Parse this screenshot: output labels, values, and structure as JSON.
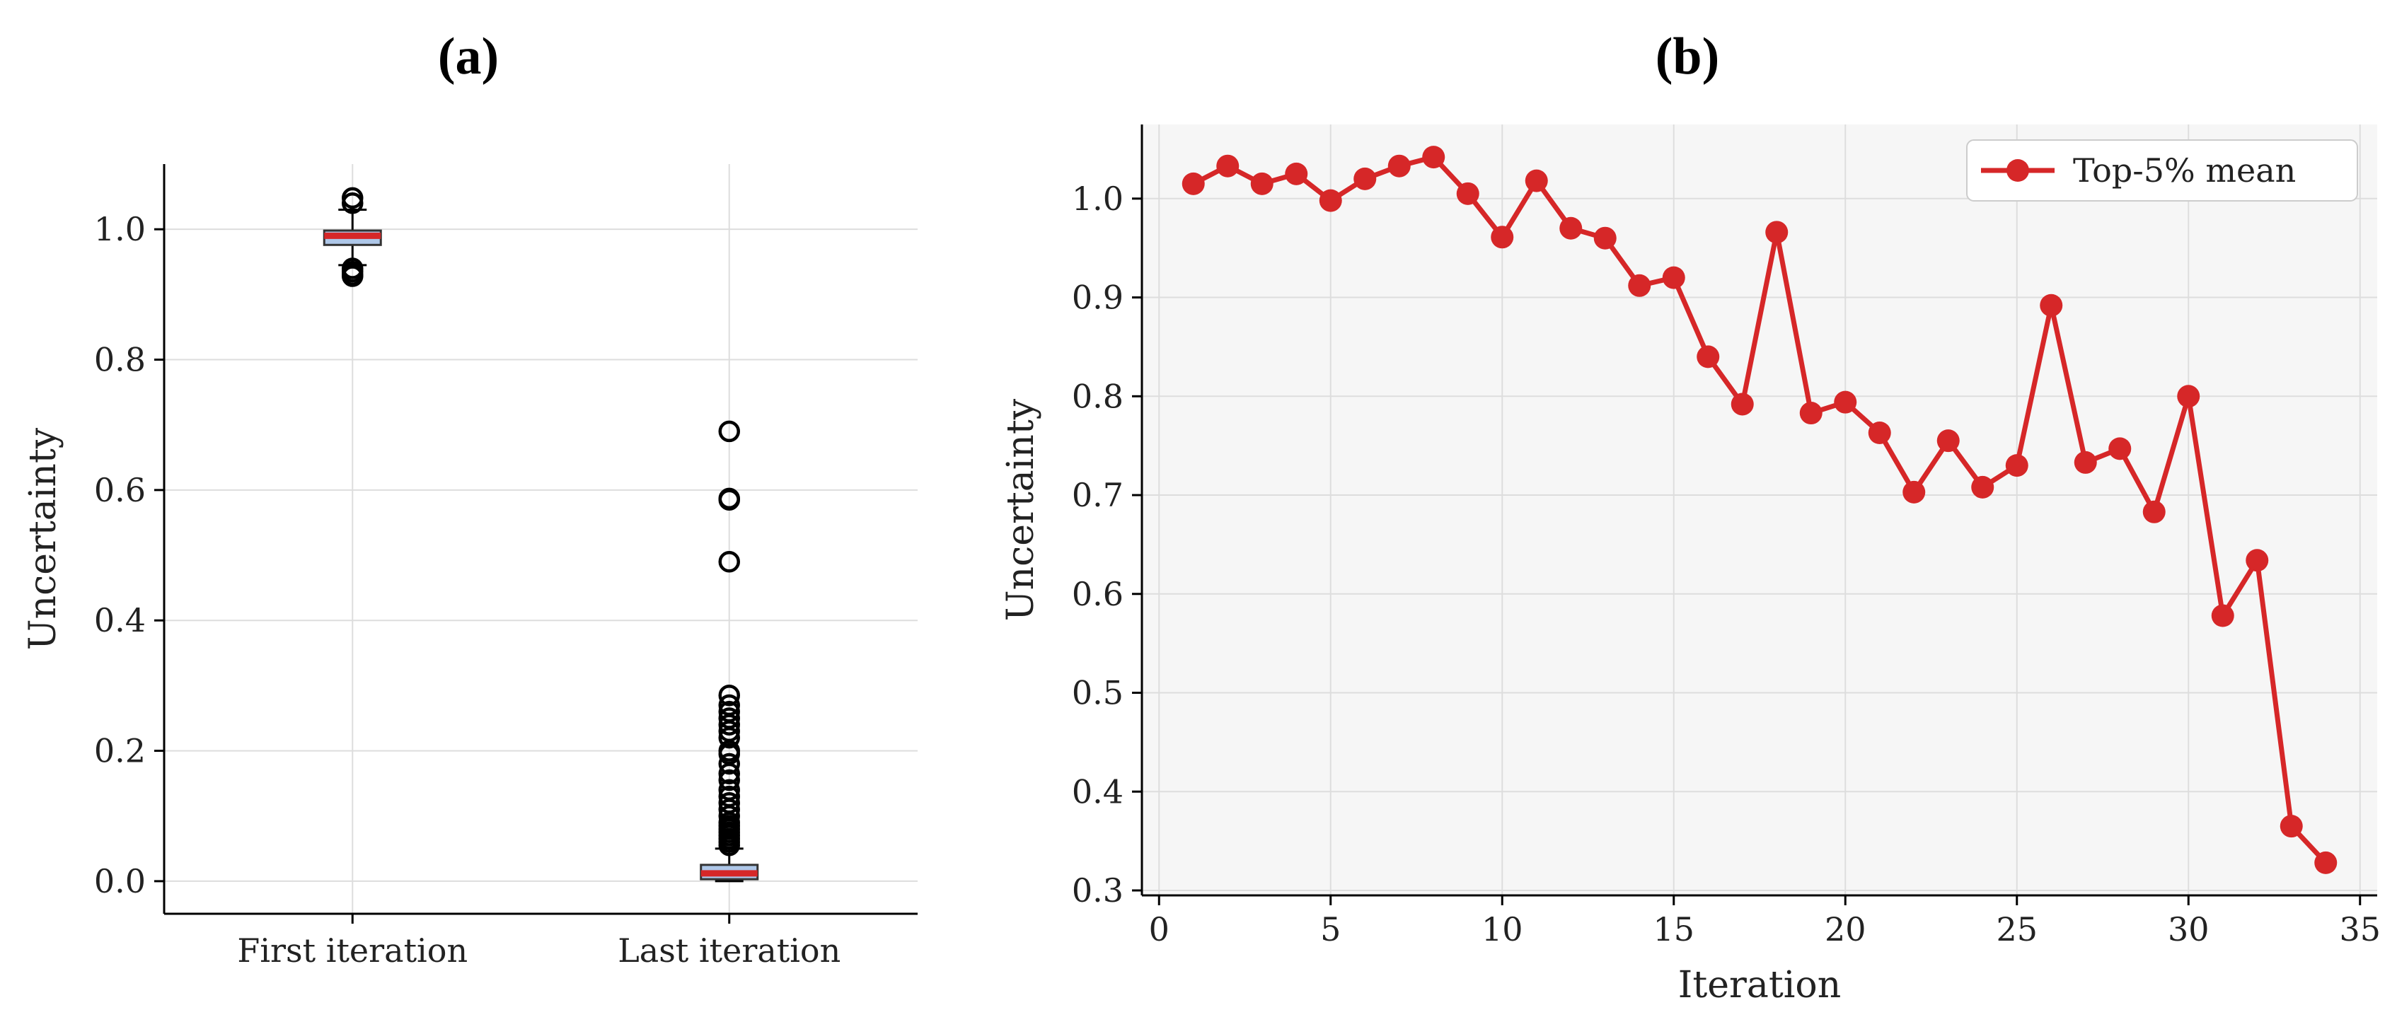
{
  "figure": {
    "panel_a_label": "(a)",
    "panel_b_label": "(b)"
  },
  "colors": {
    "accent_red": "#d62728",
    "box_fill": "#aec7e8",
    "grid": "#dddddd",
    "panel_b_bg": "#f6f6f6"
  },
  "chart_data": [
    {
      "type": "box",
      "title": "",
      "xlabel": "",
      "ylabel": "Uncertainty",
      "categories": [
        "First iteration",
        "Last iteration"
      ],
      "ylim": [
        -0.05,
        1.1
      ],
      "yticks": [
        0.0,
        0.2,
        0.4,
        0.6,
        0.8,
        1.0
      ],
      "yticklabels": [
        "0.0",
        "0.2",
        "0.4",
        "0.6",
        "0.8",
        "1.0"
      ],
      "grid": true,
      "boxes": [
        {
          "category": "First iteration",
          "q1": 0.976,
          "median": 0.99,
          "q3": 0.998,
          "whisker_low": 0.945,
          "whisker_high": 1.03,
          "outliers": [
            1.048,
            1.04,
            0.94,
            0.935,
            0.93,
            0.928
          ]
        },
        {
          "category": "Last iteration",
          "q1": 0.003,
          "median": 0.012,
          "q3": 0.025,
          "whisker_low": 0.0,
          "whisker_high": 0.05,
          "outliers": [
            0.69,
            0.587,
            0.585,
            0.49,
            0.285,
            0.27,
            0.26,
            0.25,
            0.24,
            0.23,
            0.22,
            0.2,
            0.195,
            0.18,
            0.165,
            0.155,
            0.14,
            0.13,
            0.12,
            0.11,
            0.1,
            0.09,
            0.085,
            0.08,
            0.075,
            0.07,
            0.065,
            0.06,
            0.055
          ]
        }
      ]
    },
    {
      "type": "line",
      "title": "",
      "xlabel": "Iteration",
      "ylabel": "Uncertainty",
      "xlim": [
        -0.5,
        35.5
      ],
      "ylim": [
        0.295,
        1.075
      ],
      "xticks": [
        0,
        5,
        10,
        15,
        20,
        25,
        30,
        35
      ],
      "xticklabels": [
        "0",
        "5",
        "10",
        "15",
        "20",
        "25",
        "30",
        "35"
      ],
      "yticks": [
        0.3,
        0.4,
        0.5,
        0.6,
        0.7,
        0.8,
        0.9,
        1.0
      ],
      "yticklabels": [
        "0.3",
        "0.4",
        "0.5",
        "0.6",
        "0.7",
        "0.8",
        "0.9",
        "1.0"
      ],
      "grid": true,
      "legend": "top-right",
      "series": [
        {
          "name": "Top-5% mean",
          "x": [
            1,
            2,
            3,
            4,
            5,
            6,
            7,
            8,
            9,
            10,
            11,
            12,
            13,
            14,
            15,
            16,
            17,
            18,
            19,
            20,
            21,
            22,
            23,
            24,
            25,
            26,
            27,
            28,
            29,
            30,
            31,
            32,
            33,
            34
          ],
          "y": [
            1.015,
            1.033,
            1.015,
            1.025,
            0.998,
            1.02,
            1.033,
            1.042,
            1.005,
            0.961,
            1.018,
            0.97,
            0.96,
            0.912,
            0.92,
            0.84,
            0.792,
            0.966,
            0.783,
            0.794,
            0.763,
            0.703,
            0.755,
            0.708,
            0.73,
            0.892,
            0.733,
            0.747,
            0.683,
            0.8,
            0.578,
            0.634,
            0.365,
            0.328
          ]
        }
      ]
    }
  ]
}
